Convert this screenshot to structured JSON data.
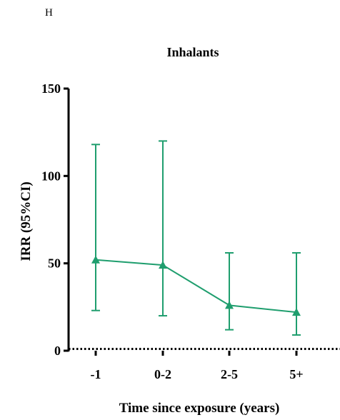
{
  "panel_label": "H",
  "chart_data": {
    "type": "line",
    "title": "Inhalants",
    "xlabel": "Time since exposure (years)",
    "ylabel": "IRR (95%CI)",
    "categories": [
      "-1",
      "0-2",
      "2-5",
      "5+"
    ],
    "ylim": [
      0,
      150
    ],
    "yticks": [
      0,
      50,
      100,
      150
    ],
    "series": [
      {
        "color": "#1f9e6e",
        "marker": "triangle",
        "values": [
          52,
          49,
          26,
          22
        ],
        "ci_low": [
          23,
          20,
          12,
          9
        ],
        "ci_high": [
          118,
          120,
          56,
          56
        ]
      }
    ],
    "reference_line": 1,
    "grid": false
  }
}
